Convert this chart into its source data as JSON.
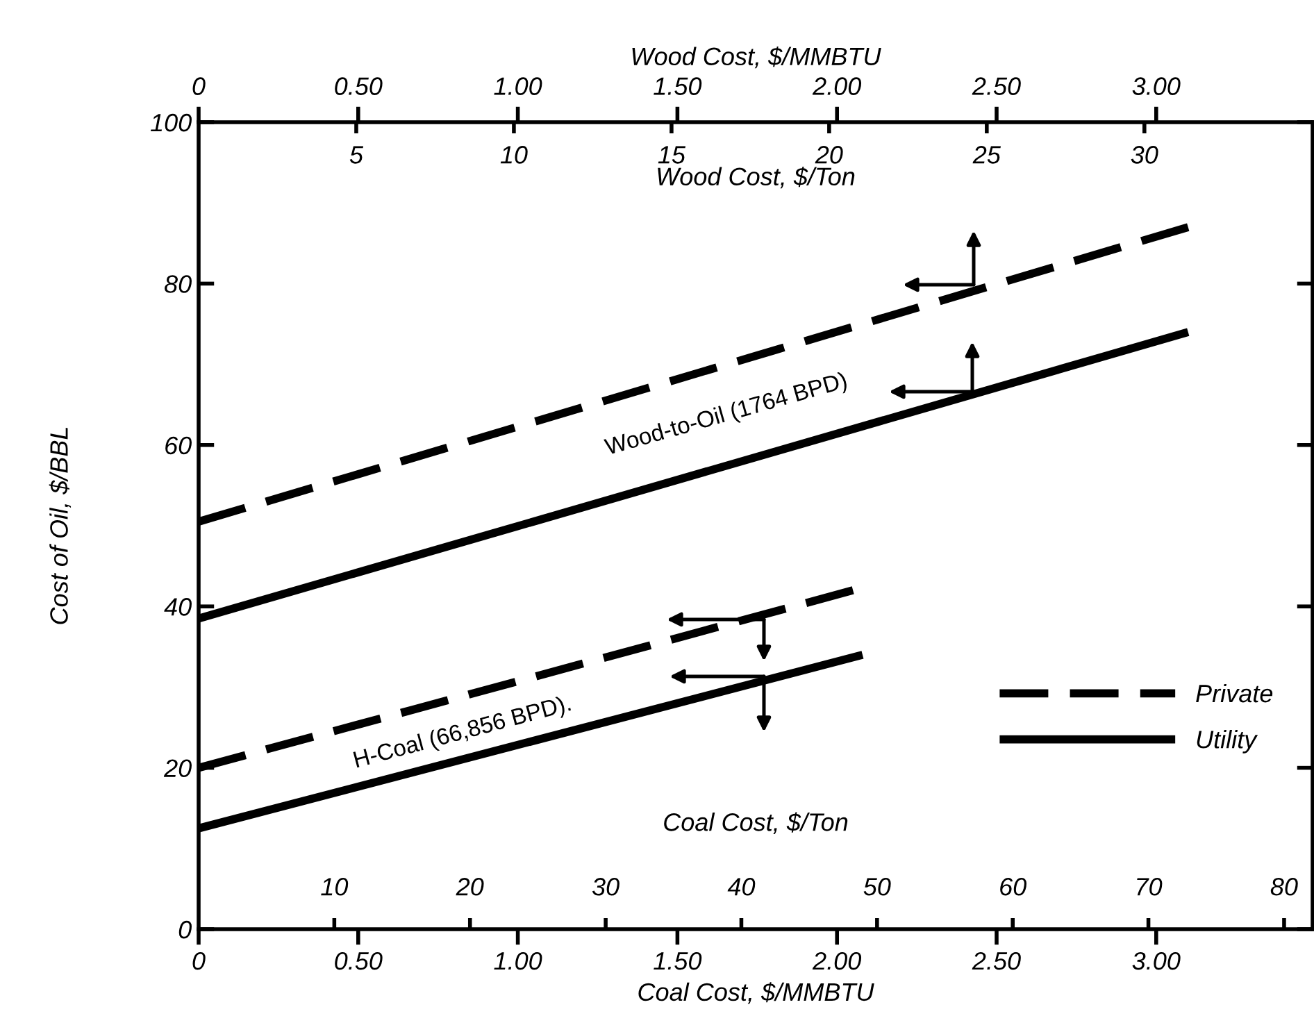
{
  "chart_data": {
    "type": "line",
    "xlabel": "Coal Cost, $/MMBTU",
    "ylabel": "Cost of Oil, $/BBL",
    "x2label": "Wood Cost, $/MMBTU",
    "xlim": [
      0,
      3.49
    ],
    "xticks": [
      0,
      {
        "value": 0.5,
        "label": "0.50"
      },
      {
        "value": 1.0,
        "label": "1.00"
      },
      {
        "value": 1.5,
        "label": "1.50"
      },
      {
        "value": 2.0,
        "label": "2.00"
      },
      {
        "value": 2.5,
        "label": "2.50"
      },
      {
        "value": 3.0,
        "label": "3.00"
      }
    ],
    "x2lim": [
      0,
      3.49
    ],
    "x2ticks": [
      0,
      {
        "value": 0.5,
        "label": "0.50"
      },
      {
        "value": 1.0,
        "label": "1.00"
      },
      {
        "value": 1.5,
        "label": "1.50"
      },
      {
        "value": 2.0,
        "label": "2.00"
      },
      {
        "value": 2.5,
        "label": "2.50"
      },
      {
        "value": 3.0,
        "label": "3.00"
      }
    ],
    "ylim": [
      0,
      100
    ],
    "yticks": [
      0,
      20,
      40,
      60,
      80,
      100
    ],
    "series": [
      {
        "name": "Private",
        "color": "#000000",
        "line_style": "dashed",
        "axis": "x2",
        "x": [
          0,
          3.1
        ],
        "values": [
          50.5,
          87
        ]
      },
      {
        "name": "Utility",
        "color": "#000000",
        "line_style": "solid",
        "axis": "x2",
        "x": [
          0,
          3.1
        ],
        "values": [
          38.5,
          74
        ]
      },
      {
        "color": "#000000",
        "line_style": "dashed",
        "x": [
          0,
          2.05
        ],
        "values": [
          20,
          42
        ]
      },
      {
        "color": "#000000",
        "line_style": "solid",
        "x": [
          0,
          2.08
        ],
        "values": [
          12.5,
          34
        ]
      }
    ],
    "annotations": [
      "Wood-to-Oil (1764 BPD)",
      "H-Coal (66,856 BPD).",
      "Wood Cost, $/Ton",
      "Coal Cost, $/Ton",
      "5",
      "10",
      "15",
      "20",
      "25",
      "30",
      "10",
      "20",
      "30",
      "40",
      "50",
      "60",
      "70",
      "80"
    ],
    "legend": "lower right",
    "grid": false,
    "marker": "none"
  }
}
